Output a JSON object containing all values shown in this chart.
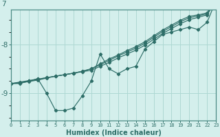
{
  "xlabel": "Humidex (Indice chaleur)",
  "bg_color": "#d4efec",
  "grid_color": "#aed8d3",
  "line_color": "#2e6e68",
  "spine_color": "#4a8a84",
  "x_values": [
    0,
    1,
    2,
    3,
    4,
    5,
    6,
    7,
    8,
    9,
    10,
    11,
    12,
    13,
    14,
    15,
    16,
    17,
    18,
    19,
    20,
    21,
    22,
    23
  ],
  "line_wavy": [
    -8.8,
    -8.8,
    -8.75,
    -8.7,
    -9.0,
    -9.35,
    -9.35,
    -9.3,
    -9.05,
    -8.75,
    -8.2,
    -8.5,
    -8.6,
    -8.5,
    -8.45,
    -8.1,
    -7.95,
    -7.8,
    -7.75,
    -7.7,
    -7.65,
    -7.7,
    -7.55,
    -7.1
  ],
  "line_straight1": [
    -8.8,
    -8.77,
    -8.74,
    -8.71,
    -8.68,
    -8.65,
    -8.62,
    -8.59,
    -8.56,
    -8.53,
    -8.45,
    -8.37,
    -8.28,
    -8.2,
    -8.12,
    -8.02,
    -7.9,
    -7.78,
    -7.68,
    -7.58,
    -7.5,
    -7.45,
    -7.4,
    -7.1
  ],
  "line_straight2": [
    -8.8,
    -8.78,
    -8.75,
    -8.72,
    -8.68,
    -8.65,
    -8.62,
    -8.59,
    -8.55,
    -8.5,
    -8.42,
    -8.33,
    -8.24,
    -8.16,
    -8.08,
    -7.98,
    -7.86,
    -7.74,
    -7.64,
    -7.54,
    -7.46,
    -7.42,
    -7.38,
    -7.07
  ],
  "line_straight3": [
    -8.8,
    -8.79,
    -8.76,
    -8.73,
    -8.69,
    -8.65,
    -8.62,
    -8.59,
    -8.55,
    -8.5,
    -8.4,
    -8.3,
    -8.22,
    -8.13,
    -8.05,
    -7.95,
    -7.83,
    -7.71,
    -7.61,
    -7.51,
    -7.43,
    -7.4,
    -7.36,
    -7.04
  ],
  "ylim": [
    -9.55,
    -7.3
  ],
  "yticks": [
    -9.0,
    -8.0
  ],
  "ytick_labels": [
    "-9",
    "-8"
  ],
  "xlim": [
    0,
    23
  ],
  "figsize": [
    3.2,
    2.0
  ],
  "dpi": 100
}
